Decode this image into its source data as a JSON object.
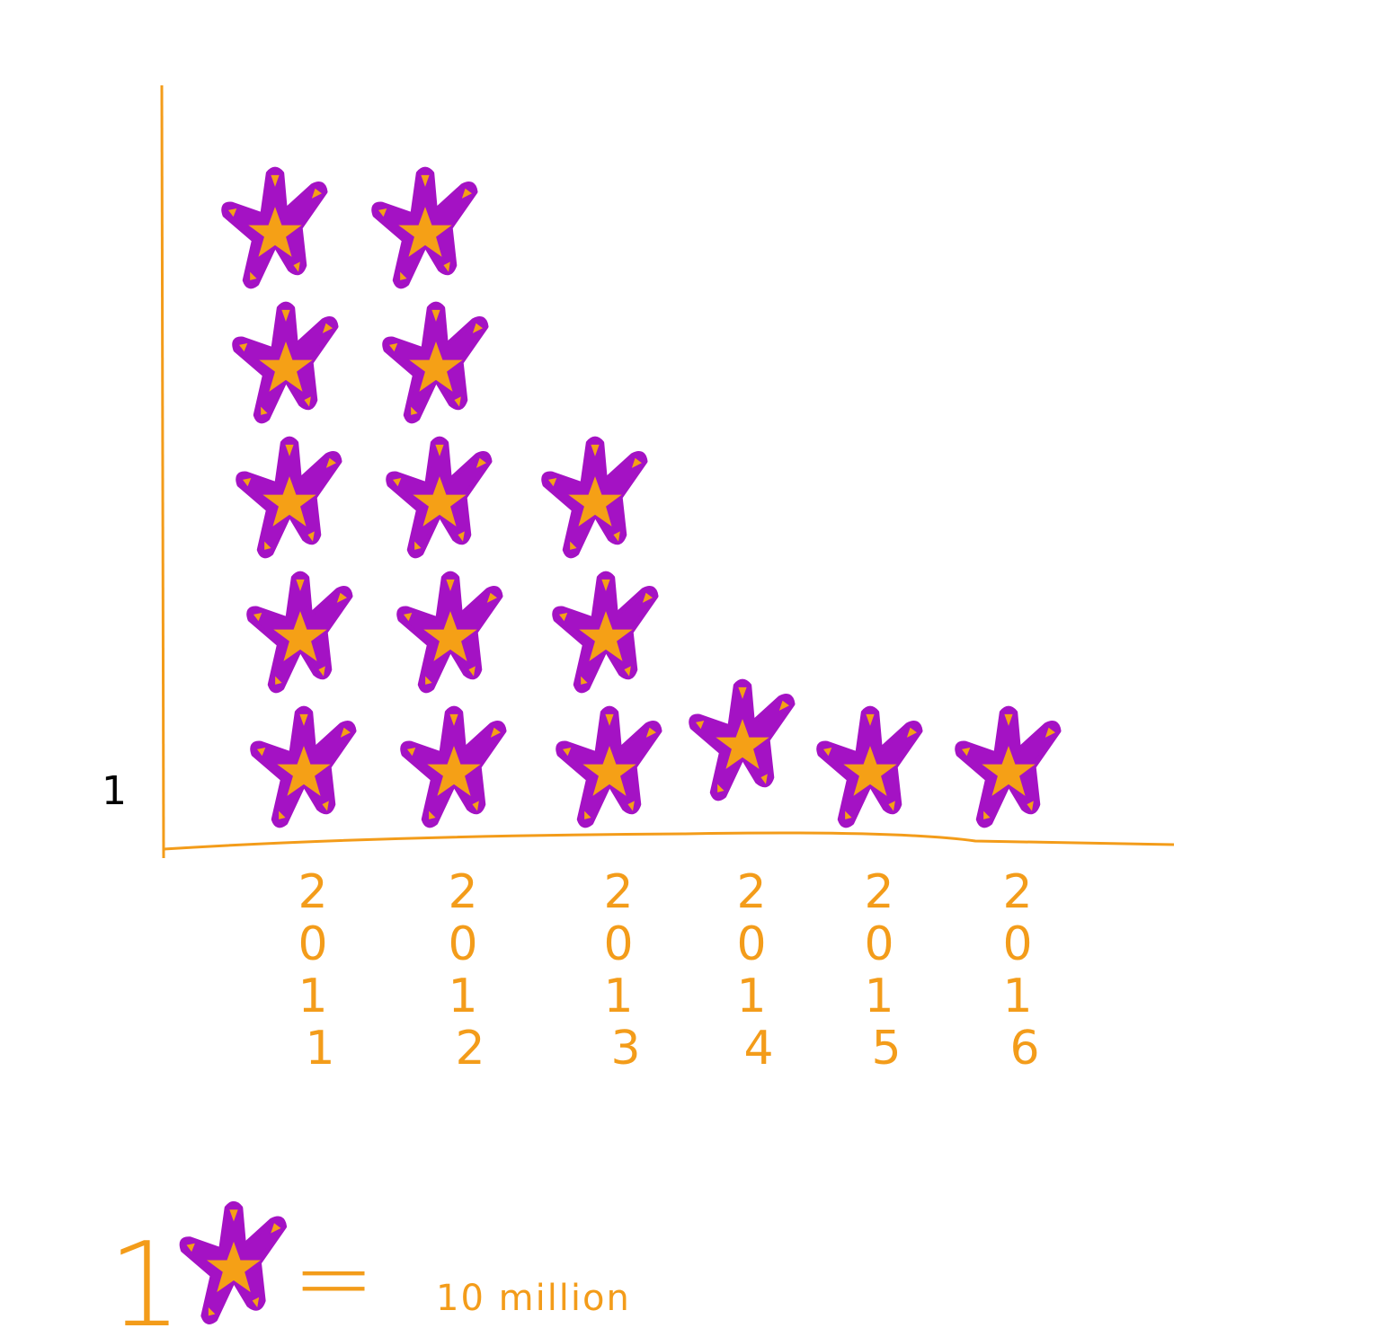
{
  "chart_data": {
    "type": "pictograph",
    "categories": [
      "2011",
      "2012",
      "2013",
      "2014",
      "2015",
      "2016"
    ],
    "values": [
      5,
      5,
      3,
      1,
      1,
      1
    ],
    "xlabel": "",
    "ylabel": "",
    "y_tick_label": "1",
    "legend": {
      "count": "1",
      "equals": "=",
      "value_label": "10 million"
    },
    "colors": {
      "axis": "#f39c1a",
      "icon_body": "#a412c4",
      "icon_accent": "#f5a016",
      "y_tick_text": "#000000"
    },
    "icon": "starfish-icon"
  }
}
